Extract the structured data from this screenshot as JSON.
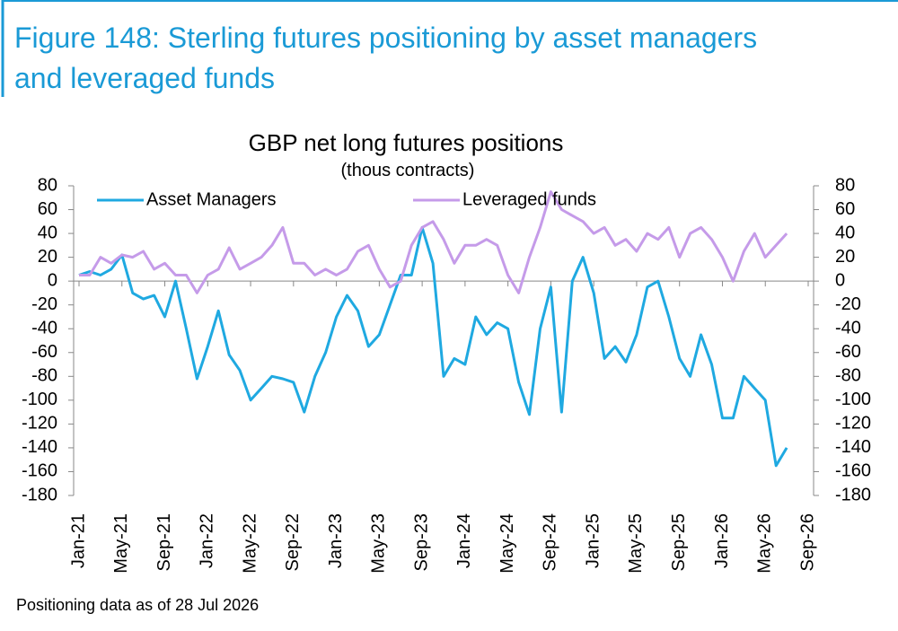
{
  "header": {
    "title_line1": "Figure 148: Sterling futures positioning by asset managers",
    "title_line2": "and leveraged funds"
  },
  "chart_data": {
    "type": "line",
    "title": "GBP net long futures positions",
    "subtitle": "(thous contracts)",
    "categories": [
      "Jan-21",
      null,
      null,
      null,
      "May-21",
      null,
      null,
      null,
      "Sep-21",
      null,
      null,
      null,
      "Jan-22",
      null,
      null,
      null,
      "May-22",
      null,
      null,
      null,
      "Sep-22",
      null,
      null,
      null,
      "Jan-23",
      null,
      null,
      null,
      "May-23",
      null,
      null,
      null,
      "Sep-23",
      null,
      null,
      null,
      "Jan-24",
      null,
      null,
      null,
      "May-24",
      null,
      null,
      null,
      "Sep-24",
      null,
      null,
      null,
      "Jan-25",
      null,
      null,
      null,
      "May-25",
      null,
      null,
      null,
      "Sep-25",
      null,
      null,
      null,
      "Jan-26",
      null,
      null,
      null,
      "May-26",
      null,
      null,
      null,
      "Sep-26"
    ],
    "series": [
      {
        "name": "Asset Managers",
        "color": "#1fa9e1",
        "values": [
          5,
          8,
          5,
          10,
          22,
          -10,
          -15,
          -12,
          -30,
          0,
          -40,
          -82,
          -55,
          -25,
          -62,
          -75,
          -100,
          -90,
          -80,
          -82,
          -85,
          -110,
          -80,
          -60,
          -30,
          -12,
          -25,
          -55,
          -45,
          -20,
          5,
          5,
          45,
          15,
          -80,
          -65,
          -70,
          -30,
          -45,
          -35,
          -40,
          -85,
          -112,
          -40,
          -5,
          -110,
          0,
          20,
          -10,
          -65,
          -55,
          -68,
          -45,
          -5,
          0,
          -30,
          -65,
          -80,
          -45,
          -70,
          -115,
          -115,
          -80,
          -90,
          -100,
          -155,
          -140,
          null,
          null
        ]
      },
      {
        "name": "Leveraged funds",
        "color": "#c59be9",
        "values": [
          5,
          5,
          20,
          15,
          22,
          20,
          25,
          10,
          15,
          5,
          5,
          -10,
          5,
          10,
          28,
          10,
          15,
          20,
          30,
          45,
          15,
          15,
          5,
          10,
          5,
          10,
          25,
          30,
          10,
          -5,
          0,
          30,
          45,
          50,
          35,
          15,
          30,
          30,
          35,
          30,
          5,
          -10,
          20,
          45,
          75,
          60,
          55,
          50,
          40,
          45,
          30,
          35,
          25,
          40,
          35,
          45,
          20,
          40,
          45,
          35,
          20,
          0,
          25,
          40,
          20,
          30,
          40,
          null,
          null
        ]
      }
    ],
    "ylim": [
      -180,
      80
    ],
    "yticks": [
      -180,
      -160,
      -140,
      -120,
      -100,
      -80,
      -60,
      -40,
      -20,
      0,
      20,
      40,
      60,
      80
    ],
    "y2lim": [
      -180,
      80
    ],
    "y2ticks": [
      -180,
      -160,
      -140,
      -120,
      -100,
      -80,
      -60,
      -40,
      -20,
      0,
      20,
      40,
      60,
      80
    ],
    "footnote": "Positioning data as of 28 Jul 2026"
  }
}
